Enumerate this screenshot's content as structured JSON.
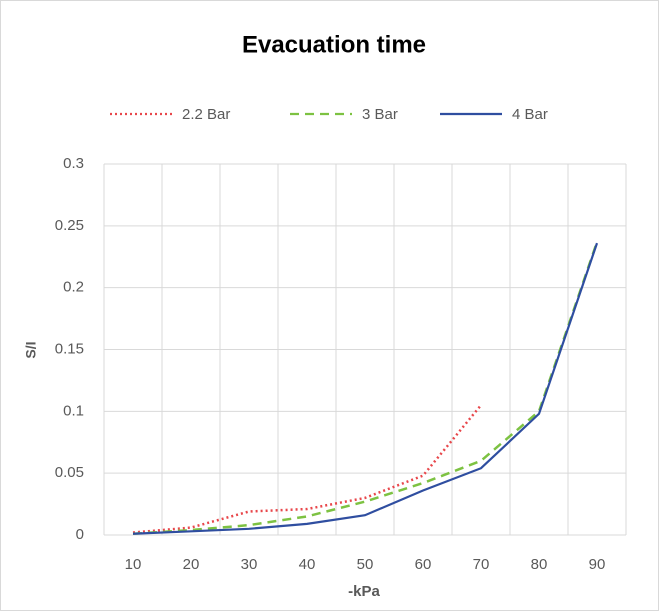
{
  "chart_data": {
    "type": "line",
    "title": "Evacuation time",
    "x_label": "-kPa",
    "y_label": "S/I",
    "categories": [
      "10",
      "20",
      "30",
      "40",
      "50",
      "60",
      "70",
      "80",
      "90"
    ],
    "series": [
      {
        "name": "2.2 Bar",
        "color": "#e8474b",
        "dash": "dotted",
        "values": [
          0.002,
          0.006,
          0.019,
          0.021,
          0.03,
          0.048,
          0.105,
          null,
          null
        ]
      },
      {
        "name": "3 Bar",
        "color": "#7dc242",
        "dash": "dashed",
        "values": [
          0.001,
          0.004,
          0.008,
          0.015,
          0.027,
          0.042,
          0.06,
          0.1,
          0.237
        ]
      },
      {
        "name": "4 Bar",
        "color": "#2f4ea0",
        "dash": "solid",
        "values": [
          0.001,
          0.003,
          0.005,
          0.009,
          0.016,
          0.036,
          0.054,
          0.098,
          0.236
        ]
      }
    ],
    "ylim": [
      0,
      0.3
    ],
    "yticks": [
      0,
      0.05,
      0.1,
      0.15,
      0.2,
      0.25,
      0.3
    ],
    "grid": true,
    "legend": "top"
  }
}
